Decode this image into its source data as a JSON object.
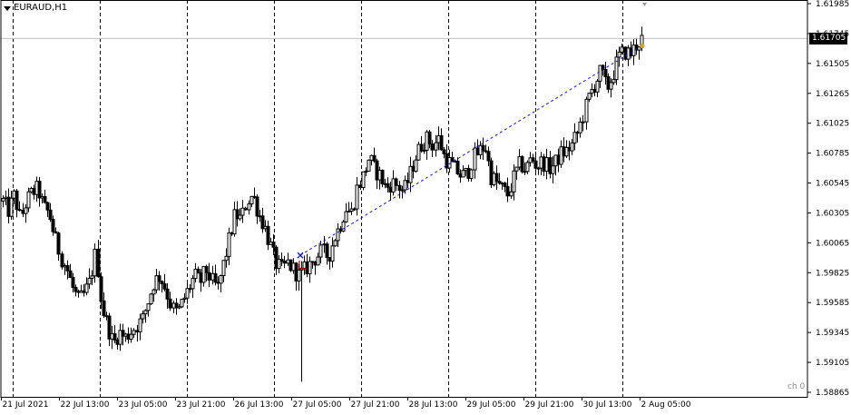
{
  "header": {
    "symbol_label": "EURAUD,H1",
    "subwindow_label": "ch 0"
  },
  "current_price": {
    "label": "1.61705",
    "value": 1.61705
  },
  "colors": {
    "background": "#ffffff",
    "candle": "#000000",
    "grid": "#000000",
    "price_line": "#c0c0c0",
    "trendline": "#1a1ab4",
    "marker_blue": "#1a1ab4",
    "marker_red": "#cc0000",
    "marker_gold": "#d4a017"
  },
  "chart_data": {
    "type": "candlestick",
    "symbol": "EURAUD",
    "timeframe": "H1",
    "y_axis": {
      "ticks": [
        "1.61985",
        "1.61745",
        "1.61505",
        "1.61265",
        "1.61025",
        "1.60785",
        "1.60545",
        "1.60305",
        "1.60065",
        "1.59825",
        "1.59585",
        "1.59345",
        "1.59105",
        "1.58865"
      ],
      "range": [
        1.58865,
        1.61985
      ]
    },
    "x_axis": {
      "ticks": [
        "21 Jul 2021",
        "22 Jul 13:00",
        "23 Jul 05:00",
        "23 Jul 21:00",
        "26 Jul 13:00",
        "27 Jul 05:00",
        "27 Jul 21:00",
        "28 Jul 13:00",
        "29 Jul 05:00",
        "29 Jul 21:00",
        "30 Jul 13:00",
        "2 Aug 05:00"
      ]
    },
    "vertical_separators": 8,
    "trendline": {
      "from": 1.59965,
      "to": 1.61645
    },
    "close_path": [
      1.604,
      1.6032,
      1.6045,
      1.6025,
      1.604,
      1.6047,
      1.605,
      1.6035,
      1.603,
      1.601,
      1.5995,
      1.5985,
      1.597,
      1.596,
      1.5965,
      1.5975,
      1.6,
      1.5955,
      1.594,
      1.5925,
      1.5935,
      1.593,
      1.5935,
      1.594,
      1.5945,
      1.596,
      1.5975,
      1.598,
      1.597,
      1.5955,
      1.595,
      1.596,
      1.597,
      1.598,
      1.5975,
      1.5985,
      1.5975,
      1.597,
      1.599,
      1.601,
      1.603,
      1.6025,
      1.604,
      1.6045,
      1.603,
      1.602,
      1.6005,
      1.599,
      1.5985,
      1.599,
      1.5985,
      1.598,
      1.5985,
      1.599,
      1.5995,
      1.6,
      1.5995,
      1.601,
      1.602,
      1.6035,
      1.603,
      1.605,
      1.606,
      1.6075,
      1.6065,
      1.606,
      1.605,
      1.6055,
      1.6052,
      1.6048,
      1.606,
      1.6075,
      1.6085,
      1.609,
      1.6085,
      1.609,
      1.6075,
      1.607,
      1.6065,
      1.606,
      1.6062,
      1.6075,
      1.608,
      1.6085,
      1.606,
      1.6055,
      1.605,
      1.6045,
      1.606,
      1.607,
      1.6065,
      1.6075,
      1.6068,
      1.6072,
      1.6066,
      1.607,
      1.6078,
      1.608,
      1.6085,
      1.6095,
      1.611,
      1.6125,
      1.6135,
      1.6145,
      1.613,
      1.614,
      1.6155,
      1.616,
      1.6158,
      1.6165,
      1.617
    ]
  }
}
